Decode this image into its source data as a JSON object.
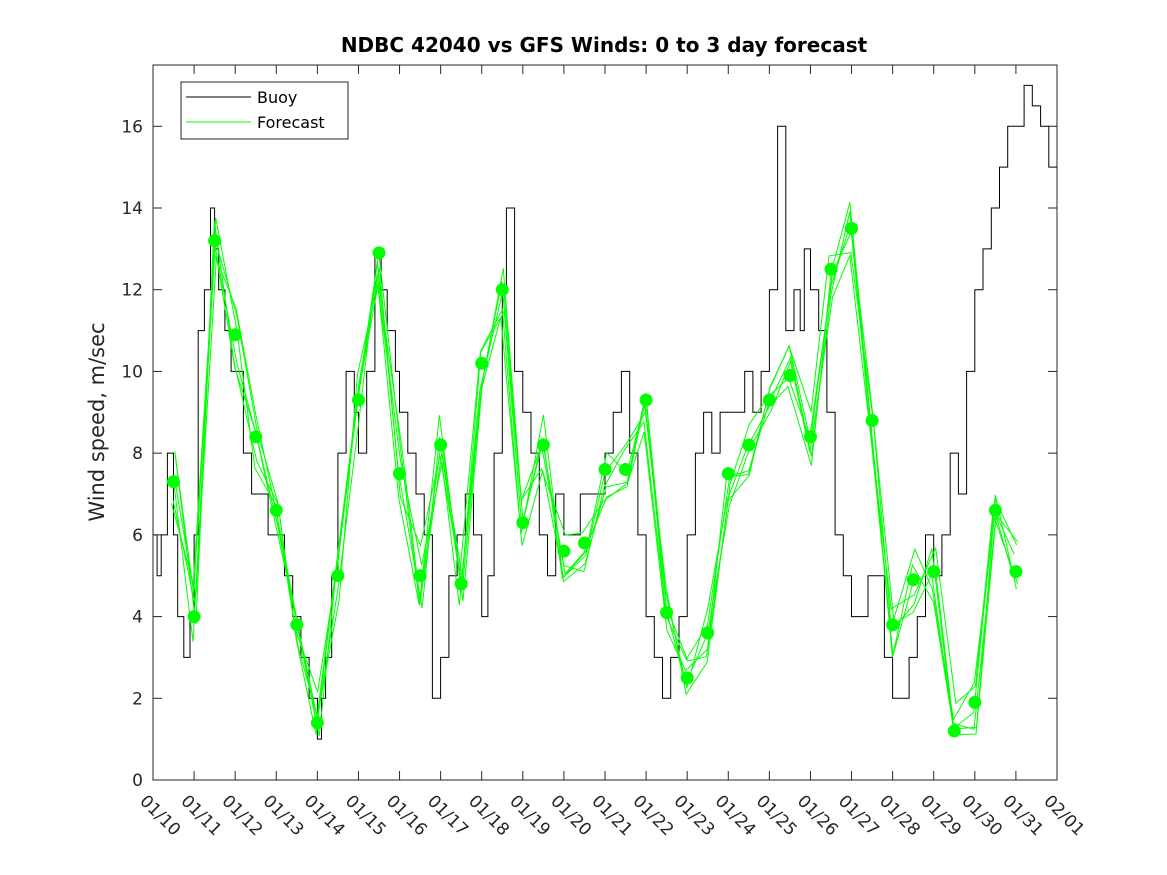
{
  "chart_data": {
    "type": "line",
    "title": "NDBC 42040 vs GFS Winds: 0 to 3 day forecast",
    "xlabel": "",
    "ylabel": "Wind speed, m/sec",
    "xlim": [
      "01/10",
      "02/01"
    ],
    "ylim": [
      0,
      17.5
    ],
    "yticks": [
      0,
      2,
      4,
      6,
      8,
      10,
      12,
      14,
      16
    ],
    "xticks": [
      "01/10",
      "01/11",
      "01/12",
      "01/13",
      "01/14",
      "01/15",
      "01/16",
      "01/17",
      "01/18",
      "01/19",
      "01/20",
      "01/21",
      "01/22",
      "01/23",
      "01/24",
      "01/25",
      "01/26",
      "01/27",
      "01/28",
      "01/29",
      "01/30",
      "01/31",
      "02/01"
    ],
    "grid": false,
    "legend": {
      "placement": "top-left",
      "entries": [
        "Buoy",
        "Forecast"
      ]
    },
    "colors": {
      "buoy": "#000000",
      "forecast": "#00ff00"
    },
    "series": [
      {
        "name": "Buoy",
        "x_days": [
          0,
          0.1,
          0.2,
          0.35,
          0.5,
          0.6,
          0.75,
          0.9,
          1.0,
          1.1,
          1.25,
          1.4,
          1.5,
          1.6,
          1.75,
          1.9,
          2.0,
          2.2,
          2.4,
          2.6,
          2.8,
          3.0,
          3.2,
          3.4,
          3.6,
          3.8,
          4.0,
          4.1,
          4.2,
          4.35,
          4.5,
          4.7,
          4.9,
          5.0,
          5.2,
          5.4,
          5.55,
          5.7,
          5.9,
          6.0,
          6.2,
          6.4,
          6.6,
          6.8,
          7.0,
          7.2,
          7.4,
          7.6,
          7.8,
          8.0,
          8.15,
          8.3,
          8.5,
          8.6,
          8.8,
          9.0,
          9.2,
          9.4,
          9.6,
          9.8,
          10.0,
          10.2,
          10.4,
          10.6,
          10.8,
          11.0,
          11.2,
          11.4,
          11.6,
          11.8,
          12.0,
          12.2,
          12.4,
          12.6,
          12.8,
          13.0,
          13.2,
          13.4,
          13.6,
          13.8,
          14.0,
          14.2,
          14.4,
          14.6,
          14.8,
          15.0,
          15.2,
          15.4,
          15.6,
          15.75,
          15.85,
          16.0,
          16.2,
          16.4,
          16.6,
          16.8,
          17.0,
          17.2,
          17.4,
          17.6,
          17.8,
          18.0,
          18.2,
          18.4,
          18.6,
          18.8,
          19.0,
          19.2,
          19.4,
          19.6,
          19.8,
          20.0,
          20.2,
          20.4,
          20.6,
          20.8,
          21.0,
          21.2,
          21.4,
          21.6,
          21.8,
          22.0
        ],
        "values": [
          6,
          5,
          6,
          8,
          6,
          4,
          3,
          4,
          6,
          11,
          12,
          14,
          13,
          12,
          11,
          10,
          10,
          8,
          7,
          7,
          6,
          6,
          5,
          4,
          3,
          2,
          1,
          2,
          3,
          5,
          8,
          10,
          9,
          8,
          10,
          13,
          12,
          11,
          10,
          9,
          8,
          7,
          6,
          2,
          3,
          5,
          6,
          7,
          6,
          4,
          5,
          8,
          12,
          14,
          10,
          9,
          8,
          6,
          5,
          7,
          6,
          6,
          7,
          7,
          7,
          8,
          9,
          10,
          8,
          6,
          4,
          3,
          2,
          3,
          4,
          6,
          8,
          9,
          8,
          9,
          9,
          9,
          10,
          9,
          10,
          12,
          16,
          11,
          12,
          11,
          13,
          12,
          11,
          9,
          6,
          5,
          4,
          4,
          5,
          5,
          3,
          2,
          2,
          3,
          4,
          6,
          5,
          6,
          8,
          7,
          10,
          12,
          13,
          14,
          15,
          16,
          16,
          17,
          16.5,
          16,
          15,
          15
        ]
      },
      {
        "name": "Forecast",
        "x_days": [
          0.5,
          1.0,
          1.5,
          2.0,
          2.5,
          3.0,
          3.5,
          4.0,
          4.5,
          5.0,
          5.5,
          6.0,
          6.5,
          7.0,
          7.5,
          8.0,
          8.5,
          9.0,
          9.5,
          10.0,
          10.5,
          11.0,
          11.5,
          12.0,
          12.5,
          13.0,
          13.5,
          14.0,
          14.5,
          15.0,
          15.5,
          16.0,
          16.5,
          17.0,
          17.5,
          18.0,
          18.5,
          19.0,
          19.5,
          20.0,
          20.5,
          21.0
        ],
        "values": [
          7.3,
          4.0,
          13.2,
          10.9,
          8.4,
          6.6,
          3.8,
          1.4,
          5.0,
          9.3,
          12.9,
          7.5,
          5.0,
          8.2,
          4.8,
          10.2,
          12.0,
          6.3,
          8.2,
          5.6,
          5.8,
          7.6,
          7.6,
          9.3,
          4.1,
          2.5,
          3.6,
          7.5,
          8.2,
          9.3,
          9.9,
          8.4,
          12.5,
          13.5,
          8.8,
          3.8,
          4.9,
          5.1,
          1.2,
          1.9,
          6.6,
          5.1
        ]
      }
    ]
  }
}
